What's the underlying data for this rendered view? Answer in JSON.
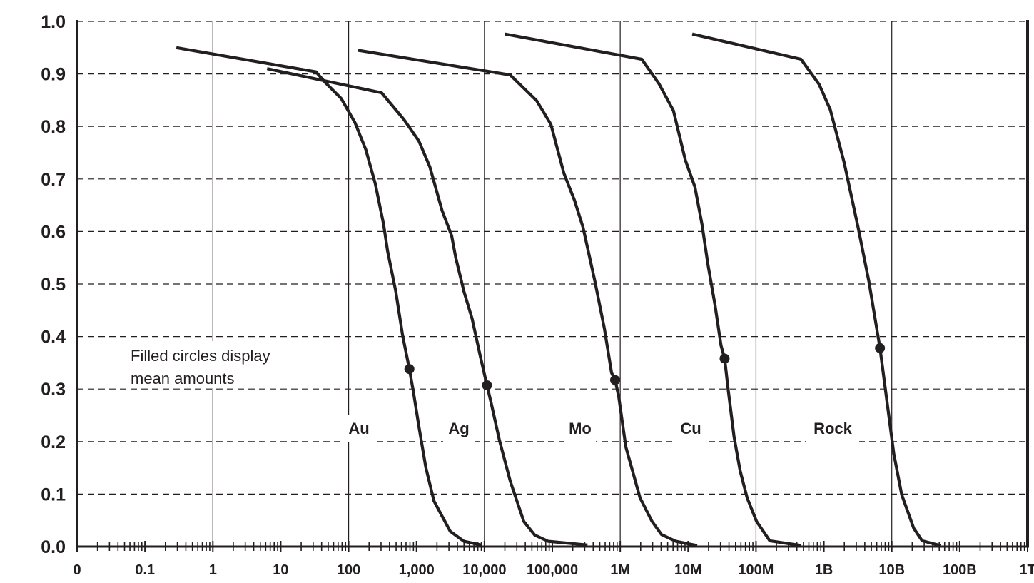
{
  "chart_data": {
    "type": "line",
    "title": "",
    "xlabel": "",
    "ylabel": "",
    "x_scale": "log",
    "xlim": [
      0.01,
      1000000000000
    ],
    "ylim": [
      0,
      1
    ],
    "grid": {
      "horizontal": "dashed every 0.1",
      "vertical": "solid every 2 decades"
    },
    "legend": "none",
    "line_color": "#231f20",
    "x_ticks": [
      {
        "value": 0.01,
        "label": "0"
      },
      {
        "value": 0.1,
        "label": "0.1"
      },
      {
        "value": 1,
        "label": "1"
      },
      {
        "value": 10,
        "label": "10"
      },
      {
        "value": 100,
        "label": "100"
      },
      {
        "value": 1000,
        "label": "1,000"
      },
      {
        "value": 10000,
        "label": "10,000"
      },
      {
        "value": 100000,
        "label": "100,000"
      },
      {
        "value": 1000000,
        "label": "1M"
      },
      {
        "value": 10000000,
        "label": "10M"
      },
      {
        "value": 100000000,
        "label": "100M"
      },
      {
        "value": 1000000000,
        "label": "1B"
      },
      {
        "value": 10000000000,
        "label": "10B"
      },
      {
        "value": 100000000000,
        "label": "100B"
      },
      {
        "value": 1000000000000,
        "label": "1T"
      }
    ],
    "y_ticks": [
      {
        "value": 0.0,
        "label": "0.0"
      },
      {
        "value": 0.1,
        "label": "0.1"
      },
      {
        "value": 0.2,
        "label": "0.2"
      },
      {
        "value": 0.3,
        "label": "0.3"
      },
      {
        "value": 0.4,
        "label": "0.4"
      },
      {
        "value": 0.5,
        "label": "0.5"
      },
      {
        "value": 0.6,
        "label": "0.6"
      },
      {
        "value": 0.7,
        "label": "0.7"
      },
      {
        "value": 0.8,
        "label": "0.8"
      },
      {
        "value": 0.9,
        "label": "0.9"
      },
      {
        "value": 1.0,
        "label": "1.0"
      }
    ],
    "annotation": [
      "Filled circles display",
      "mean amounts"
    ],
    "series": [
      {
        "name": "Au",
        "x": [
          0.29,
          33,
          45,
          78,
          124,
          179,
          247,
          327,
          374,
          494,
          624,
          785,
          902,
          1086,
          1368,
          1803,
          3140,
          4980,
          9000
        ],
        "y": [
          0.95,
          0.904,
          0.884,
          0.853,
          0.807,
          0.756,
          0.691,
          0.614,
          0.563,
          0.486,
          0.402,
          0.338,
          0.293,
          0.228,
          0.151,
          0.087,
          0.029,
          0.01,
          0.003
        ],
        "mean": {
          "x": 785,
          "y": 0.338
        }
      },
      {
        "name": "Ag",
        "x": [
          6.3,
          306,
          653,
          1086,
          1570,
          2380,
          3290,
          3780,
          4980,
          6580,
          8670,
          10900,
          12600,
          16600,
          24000,
          38000,
          55000,
          87000,
          330000
        ],
        "y": [
          0.91,
          0.864,
          0.813,
          0.772,
          0.723,
          0.64,
          0.592,
          0.55,
          0.486,
          0.434,
          0.363,
          0.307,
          0.273,
          0.203,
          0.125,
          0.048,
          0.022,
          0.01,
          0.003
        ],
        "mean": {
          "x": 10900,
          "y": 0.307
        }
      },
      {
        "name": "Mo",
        "x": [
          138,
          24000,
          58700,
          95300,
          148000,
          213000,
          283000,
          424000,
          585000,
          745000,
          841000,
          950000,
          1210000,
          1960000,
          2940000,
          4060000,
          6590000,
          13600000
        ],
        "y": [
          0.945,
          0.898,
          0.849,
          0.804,
          0.711,
          0.659,
          0.608,
          0.505,
          0.415,
          0.331,
          0.317,
          0.286,
          0.19,
          0.093,
          0.048,
          0.023,
          0.01,
          0.002
        ],
        "mean": {
          "x": 841000,
          "y": 0.317
        }
      },
      {
        "name": "Cu",
        "x": [
          20000,
          2080000,
          3740000,
          6070000,
          9100000,
          12600000,
          16000000,
          19600000,
          24900000,
          30500000,
          34500000,
          38900000,
          47500000,
          58200000,
          74100000,
          102000000,
          160000000,
          460000000
        ],
        "y": [
          0.976,
          0.928,
          0.881,
          0.83,
          0.736,
          0.685,
          0.614,
          0.537,
          0.46,
          0.383,
          0.358,
          0.299,
          0.209,
          0.145,
          0.093,
          0.048,
          0.011,
          0.002
        ],
        "mean": {
          "x": 34500000,
          "y": 0.358
        }
      },
      {
        "name": "Rock",
        "x": [
          11500000,
          460000000,
          850000000,
          1240000000,
          2000000000,
          3200000000,
          4600000000,
          6700000000,
          10700000000,
          14000000000,
          21000000000,
          28000000000,
          52000000000
        ],
        "y": [
          0.976,
          0.928,
          0.88,
          0.832,
          0.73,
          0.607,
          0.505,
          0.378,
          0.177,
          0.099,
          0.035,
          0.011,
          0.002
        ],
        "mean": {
          "x": 6700000000,
          "y": 0.378
        }
      }
    ]
  }
}
